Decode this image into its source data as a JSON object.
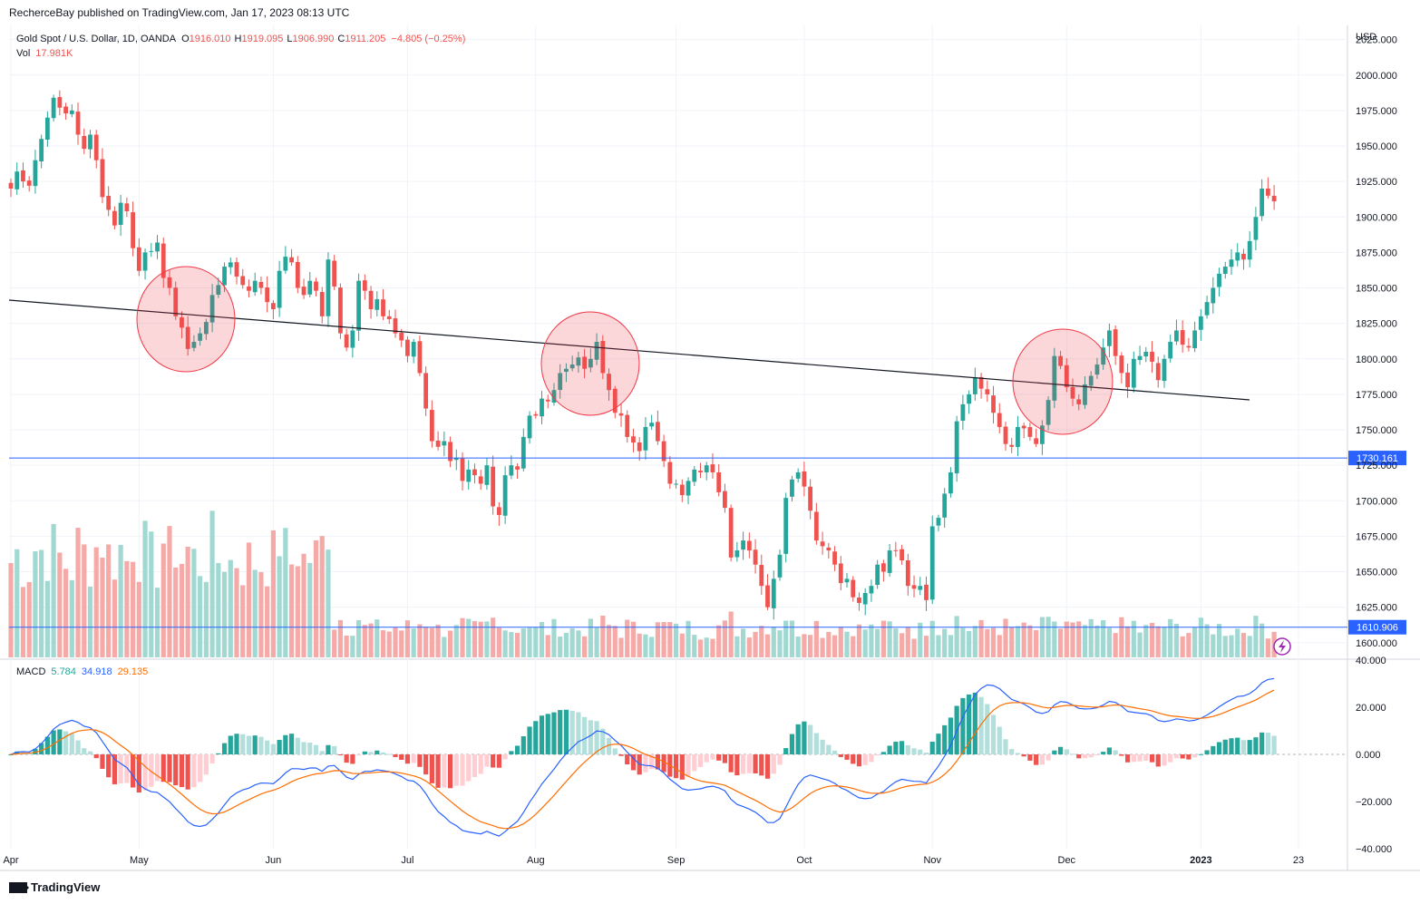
{
  "caption": "RecherceBay published on TradingView.com, Jan 17, 2023 08:13 UTC",
  "brand": "TradingView",
  "colors": {
    "up": "#26a69a",
    "down": "#ef5350",
    "level_line": "#2962ff",
    "macd": "#2962ff",
    "signal": "#ff6d00"
  },
  "chart_data": [
    {
      "type": "candlestick",
      "symbol": "Gold Spot / U.S. Dollar, 1D, OANDA",
      "legend": {
        "o_label": "O",
        "o": "1916.010",
        "h_label": "H",
        "h": "1919.095",
        "l_label": "L",
        "l": "1906.990",
        "c_label": "C",
        "c": "1911.205",
        "change": "−4.805 (−0.25%)"
      },
      "currency": "USD",
      "y_ticks": [
        "2025.000",
        "2000.000",
        "1975.000",
        "1950.000",
        "1925.000",
        "1900.000",
        "1875.000",
        "1850.000",
        "1825.000",
        "1800.000",
        "1775.000",
        "1750.000",
        "1725.000",
        "1700.000",
        "1675.000",
        "1650.000",
        "1625.000",
        "1600.000"
      ],
      "ylim": [
        1589,
        2035
      ],
      "price_levels": [
        {
          "value": 1730.161,
          "label": "1730.161"
        },
        {
          "value": 1610.906,
          "label": "1610.906"
        }
      ],
      "x_labels": [
        {
          "label": "Apr",
          "index": 0
        },
        {
          "label": "May",
          "index": 21
        },
        {
          "label": "Jun",
          "index": 43
        },
        {
          "label": "Jul",
          "index": 65
        },
        {
          "label": "Aug",
          "index": 86
        },
        {
          "label": "Sep",
          "index": 109
        },
        {
          "label": "Oct",
          "index": 130
        },
        {
          "label": "Nov",
          "index": 151
        },
        {
          "label": "Dec",
          "index": 173
        },
        {
          "label": "2023",
          "index": 195
        },
        {
          "label": "23",
          "index": 211
        }
      ],
      "ohlc_close": [
        1920,
        1932,
        1925,
        1922,
        1940,
        1955,
        1970,
        1984,
        1977,
        1973,
        1975,
        1958,
        1948,
        1958,
        1940,
        1914,
        1905,
        1894,
        1910,
        1904,
        1878,
        1862,
        1875,
        1876,
        1882,
        1857,
        1850,
        1830,
        1822,
        1807,
        1812,
        1818,
        1826,
        1845,
        1852,
        1865,
        1868,
        1858,
        1852,
        1848,
        1855,
        1850,
        1840,
        1835,
        1862,
        1872,
        1868,
        1850,
        1845,
        1855,
        1848,
        1830,
        1870,
        1851,
        1818,
        1808,
        1820,
        1855,
        1848,
        1835,
        1842,
        1830,
        1828,
        1818,
        1813,
        1802,
        1812,
        1790,
        1765,
        1742,
        1738,
        1742,
        1728,
        1730,
        1714,
        1722,
        1718,
        1712,
        1725,
        1696,
        1690,
        1718,
        1725,
        1722,
        1745,
        1760,
        1760,
        1772,
        1770,
        1778,
        1790,
        1793,
        1796,
        1801,
        1793,
        1800,
        1812,
        1790,
        1778,
        1762,
        1760,
        1745,
        1741,
        1735,
        1752,
        1755,
        1742,
        1728,
        1712,
        1712,
        1704,
        1714,
        1722,
        1720,
        1725,
        1720,
        1706,
        1695,
        1660,
        1665,
        1672,
        1665,
        1655,
        1640,
        1625,
        1645,
        1662,
        1702,
        1715,
        1720,
        1710,
        1693,
        1672,
        1668,
        1665,
        1655,
        1642,
        1645,
        1632,
        1628,
        1635,
        1640,
        1655,
        1650,
        1665,
        1665,
        1658,
        1640,
        1638,
        1640,
        1630,
        1682,
        1688,
        1705,
        1720,
        1756,
        1768,
        1775,
        1787,
        1779,
        1775,
        1762,
        1752,
        1740,
        1738,
        1752,
        1751,
        1745,
        1740,
        1753,
        1771,
        1802,
        1795,
        1780,
        1772,
        1768,
        1782,
        1788,
        1796,
        1808,
        1820,
        1802,
        1790,
        1780,
        1800,
        1802,
        1805,
        1798,
        1785,
        1800,
        1812,
        1820,
        1810,
        1808,
        1820,
        1830,
        1840,
        1850,
        1860,
        1865,
        1870,
        1875,
        1870,
        1883,
        1900,
        1920,
        1915,
        1911
      ],
      "volume_note": {
        "label": "Vol",
        "value": "17.981K"
      }
    },
    {
      "type": "macd",
      "legend": {
        "label": "MACD",
        "hist": "5.784",
        "macd": "34.918",
        "signal": "29.135"
      },
      "y_ticks": [
        "40.000",
        "20.000",
        "0.000",
        "−20.000",
        "−40.000"
      ],
      "ylim": [
        -40,
        40
      ]
    }
  ]
}
